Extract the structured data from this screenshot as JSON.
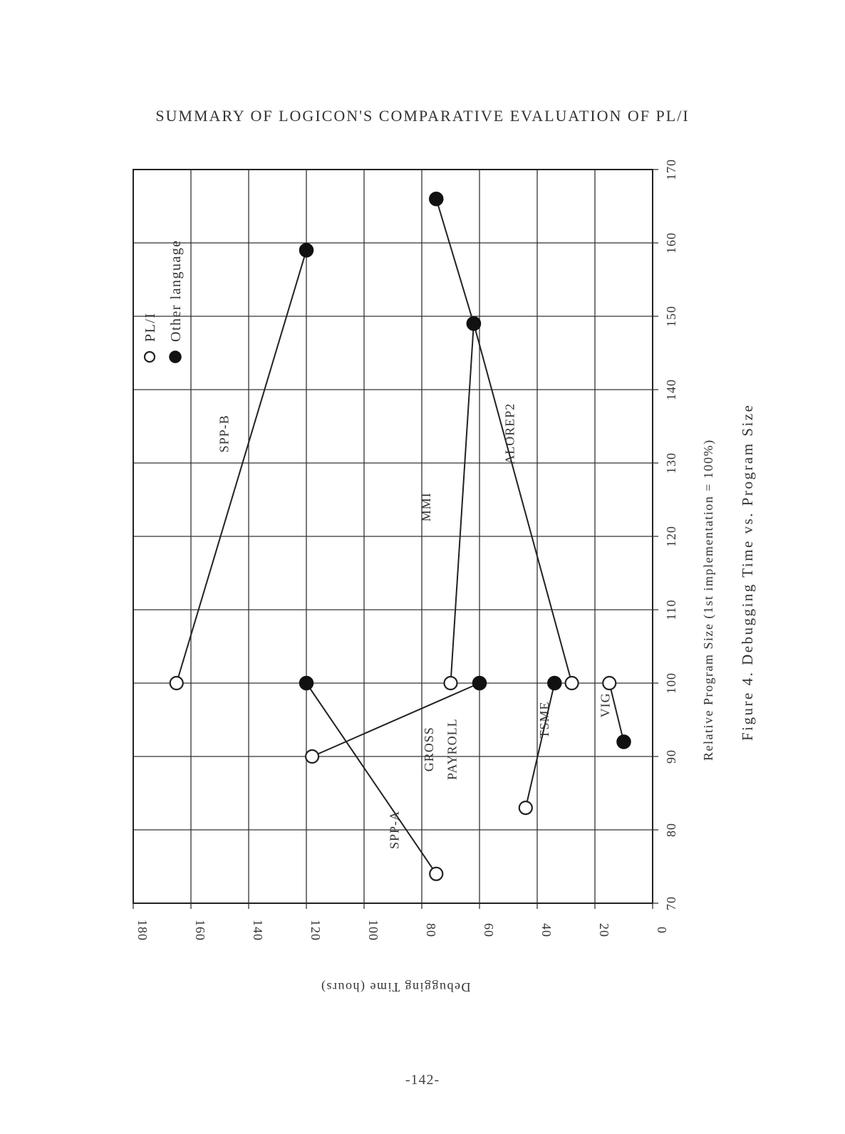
{
  "page": {
    "header": "SUMMARY OF LOGICON'S COMPARATIVE EVALUATION OF PL/I",
    "page_number": "-142-"
  },
  "chart_data": {
    "type": "scatter",
    "title": "",
    "caption": "Figure 4.  Debugging Time vs.  Program Size",
    "xlabel": "Relative Program Size (1st implementation = 100%)",
    "ylabel": "Debugging Time (hours)",
    "xlim": [
      70,
      170
    ],
    "ylim": [
      0,
      180
    ],
    "x_ticks": [
      "70",
      "80",
      "90",
      "100",
      "110",
      "120",
      "130",
      "140",
      "150",
      "160",
      "170"
    ],
    "y_ticks": [
      "0",
      "20",
      "40",
      "60",
      "80",
      "100",
      "120",
      "140",
      "160",
      "180"
    ],
    "grid": true,
    "orientation": "rotated 90 degrees counter-clockwise on the page",
    "legend": {
      "position": "top-left",
      "entries": [
        {
          "name": "PL/I",
          "marker": "open-circle"
        },
        {
          "name": "Other language",
          "marker": "filled-circle"
        }
      ]
    },
    "series": [
      {
        "name": "SPP-B",
        "points": [
          {
            "x": 100,
            "y": 165,
            "language": "PL/I"
          },
          {
            "x": 159,
            "y": 120,
            "language": "Other language"
          }
        ]
      },
      {
        "name": "SPP-A",
        "points": [
          {
            "x": 100,
            "y": 120,
            "language": "Other language"
          },
          {
            "x": 74,
            "y": 75,
            "language": "PL/I"
          }
        ]
      },
      {
        "name": "GROSS PAYROLL",
        "points": [
          {
            "x": 90,
            "y": 118,
            "language": "PL/I"
          },
          {
            "x": 100,
            "y": 60,
            "language": "Other language"
          }
        ]
      },
      {
        "name": "MMI",
        "points": [
          {
            "x": 100,
            "y": 70,
            "language": "PL/I"
          },
          {
            "x": 149,
            "y": 62,
            "language": "Other language"
          }
        ]
      },
      {
        "name": "ALOREP2",
        "points": [
          {
            "x": 166,
            "y": 75,
            "language": "Other language"
          },
          {
            "x": 149,
            "y": 62,
            "language": "Other language"
          },
          {
            "x": 100,
            "y": 28,
            "language": "PL/I"
          }
        ]
      },
      {
        "name": "TSME",
        "points": [
          {
            "x": 83,
            "y": 44,
            "language": "PL/I"
          },
          {
            "x": 100,
            "y": 34,
            "language": "Other language"
          }
        ]
      },
      {
        "name": "VIG",
        "points": [
          {
            "x": 100,
            "y": 15,
            "language": "PL/I"
          },
          {
            "x": 92,
            "y": 10,
            "language": "Other language"
          }
        ]
      }
    ]
  }
}
